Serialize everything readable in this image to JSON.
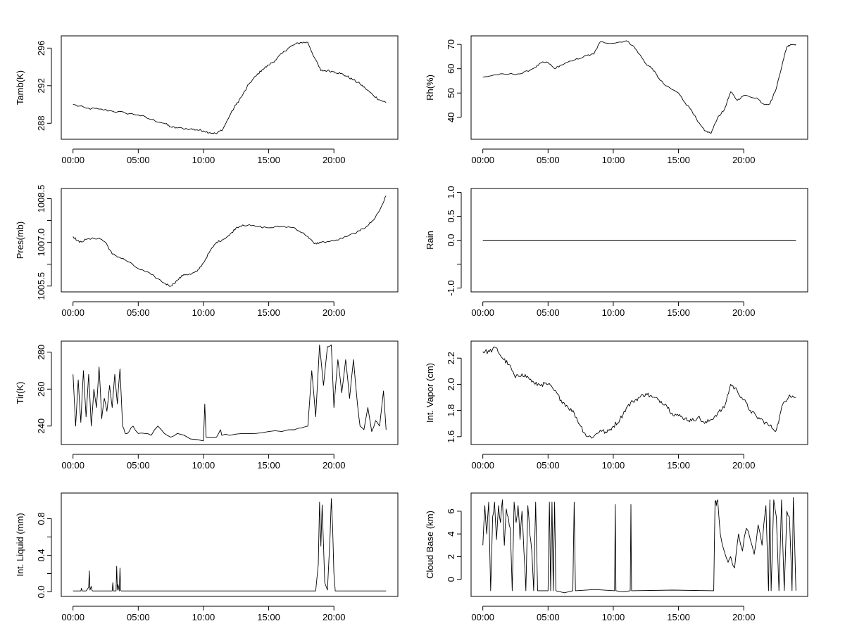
{
  "chart_data": [
    {
      "type": "line",
      "ylabel": "Tamb(K)",
      "x_ticks": [
        "00:00",
        "05:00",
        "10:00",
        "15:00",
        "20:00"
      ],
      "x_tick_hours": [
        0,
        5,
        10,
        15,
        20
      ],
      "xlim_hours": [
        -0.9,
        24.9
      ],
      "ylim": [
        286.3,
        297.3
      ],
      "y_ticks": [
        288,
        292,
        296
      ],
      "y_tick_labels": [
        "288",
        "292",
        "296"
      ],
      "noise": 0.12,
      "spiky": false,
      "x": [
        0,
        1,
        2,
        3,
        4,
        5,
        6,
        7,
        7.5,
        8,
        9,
        9.5,
        10,
        10.5,
        11,
        11.5,
        12,
        12.5,
        13,
        13.5,
        14,
        14.5,
        15,
        15.5,
        16,
        16.5,
        17,
        17.5,
        18,
        18.5,
        19,
        19.5,
        20,
        20.5,
        21,
        21.5,
        22,
        22.5,
        23,
        23.5,
        24
      ],
      "y": [
        290.0,
        289.6,
        289.5,
        289.3,
        289.1,
        288.9,
        288.4,
        288.0,
        287.6,
        287.5,
        287.4,
        287.3,
        287.2,
        287.0,
        286.9,
        287.4,
        288.8,
        290.0,
        291.0,
        292.2,
        293.0,
        293.7,
        294.2,
        294.7,
        295.4,
        296.0,
        296.4,
        296.6,
        296.6,
        295.0,
        293.6,
        293.6,
        293.5,
        293.3,
        293.0,
        292.6,
        292.2,
        291.6,
        291.0,
        290.5,
        290.2
      ]
    },
    {
      "type": "line",
      "ylabel": "Rh(%)",
      "x_ticks": [
        "00:00",
        "05:00",
        "10:00",
        "15:00",
        "20:00"
      ],
      "x_tick_hours": [
        0,
        5,
        10,
        15,
        20
      ],
      "xlim_hours": [
        -0.9,
        24.9
      ],
      "ylim": [
        31,
        73.5
      ],
      "y_ticks": [
        40,
        50,
        60,
        70
      ],
      "y_tick_labels": [
        "40",
        "50",
        "60",
        "70"
      ],
      "noise": 0.35,
      "spiky": false,
      "x": [
        0,
        1,
        2,
        3,
        4,
        4.5,
        5,
        5.5,
        6,
        7,
        8,
        8.5,
        9,
        10,
        11,
        11.5,
        12,
        12.5,
        13,
        13.5,
        14,
        15,
        15.5,
        16,
        16.5,
        17,
        17.5,
        18,
        18.5,
        19,
        19.5,
        20,
        21,
        21.5,
        22,
        22.5,
        23,
        23.3,
        23.6,
        24
      ],
      "y": [
        56.5,
        57.5,
        57.8,
        58.0,
        60.5,
        62.5,
        62.5,
        60.0,
        61.5,
        63.5,
        65.5,
        66.0,
        71.0,
        70.5,
        71.5,
        69.5,
        66.0,
        62.0,
        60.0,
        56.0,
        53.0,
        50.0,
        46.0,
        43.0,
        38.0,
        34.5,
        33.5,
        40.0,
        43.0,
        50.5,
        47.0,
        49.0,
        48.0,
        45.5,
        45.5,
        52.0,
        63.0,
        69.0,
        70.0,
        70.0
      ]
    },
    {
      "type": "line",
      "ylabel": "Pres(mb)",
      "x_ticks": [
        "00:00",
        "05:00",
        "10:00",
        "15:00",
        "20:00"
      ],
      "x_tick_hours": [
        0,
        5,
        10,
        15,
        20
      ],
      "xlim_hours": [
        -0.9,
        24.9
      ],
      "ylim": [
        1005.3,
        1008.85
      ],
      "y_ticks": [
        1005.5,
        1006.25,
        1007.0,
        1007.75,
        1008.5
      ],
      "y_tick_labels": [
        "1005.5",
        "",
        "1007.0",
        "",
        "1008.5"
      ],
      "noise": 0.035,
      "spiky": false,
      "x": [
        0,
        0.5,
        1,
        2,
        2.5,
        3,
        3.5,
        4,
        5,
        6,
        7,
        7.5,
        8,
        8.5,
        9,
        9.5,
        10,
        10.5,
        11,
        11.5,
        12,
        12.5,
        13,
        14,
        15,
        16,
        17,
        18,
        18.5,
        19,
        20,
        21,
        22,
        22.5,
        23,
        23.5,
        24
      ],
      "y": [
        1007.2,
        1007.0,
        1007.1,
        1007.15,
        1007.0,
        1006.6,
        1006.5,
        1006.4,
        1006.1,
        1005.9,
        1005.6,
        1005.5,
        1005.7,
        1005.9,
        1005.9,
        1006.0,
        1006.3,
        1006.7,
        1007.0,
        1007.1,
        1007.25,
        1007.5,
        1007.6,
        1007.55,
        1007.5,
        1007.55,
        1007.5,
        1007.2,
        1006.95,
        1007.0,
        1007.05,
        1007.2,
        1007.4,
        1007.55,
        1007.75,
        1008.1,
        1008.6
      ]
    },
    {
      "type": "line",
      "ylabel": "Rain",
      "x_ticks": [
        "00:00",
        "05:00",
        "10:00",
        "15:00",
        "20:00"
      ],
      "x_tick_hours": [
        0,
        5,
        10,
        15,
        20
      ],
      "xlim_hours": [
        -0.9,
        24.9
      ],
      "ylim": [
        -1.08,
        1.08
      ],
      "y_ticks": [
        -1.0,
        -0.5,
        0.0,
        0.5,
        1.0
      ],
      "y_tick_labels": [
        "-1.0",
        "",
        "0.0",
        "0.5",
        "1.0"
      ],
      "noise": 0,
      "spiky": false,
      "x": [
        0,
        24
      ],
      "y": [
        0,
        0
      ]
    },
    {
      "type": "line",
      "ylabel": "Tir(K)",
      "x_ticks": [
        "00:00",
        "05:00",
        "10:00",
        "15:00",
        "20:00"
      ],
      "x_tick_hours": [
        0,
        5,
        10,
        15,
        20
      ],
      "xlim_hours": [
        -0.9,
        24.9
      ],
      "ylim": [
        230,
        286
      ],
      "y_ticks": [
        240,
        260,
        280
      ],
      "y_tick_labels": [
        "240",
        "260",
        "280"
      ],
      "noise": 0.6,
      "spiky": true,
      "x": [
        0,
        0.2,
        0.4,
        0.6,
        0.8,
        1.0,
        1.2,
        1.4,
        1.6,
        1.8,
        2.0,
        2.2,
        2.4,
        2.6,
        2.8,
        3.0,
        3.2,
        3.4,
        3.6,
        3.8,
        4.0,
        4.3,
        4.6,
        5.0,
        5.5,
        6.0,
        6.5,
        7.0,
        7.5,
        8.0,
        9.0,
        10.0,
        10.1,
        10.2,
        11.0,
        11.3,
        11.4,
        12.0,
        13.0,
        14.0,
        15.0,
        16.0,
        17.0,
        17.5,
        18.0,
        18.3,
        18.6,
        18.9,
        19.2,
        19.5,
        19.8,
        20.0,
        20.3,
        20.6,
        20.9,
        21.2,
        21.5,
        21.8,
        22.0,
        22.3,
        22.6,
        22.9,
        23.2,
        23.5,
        23.8,
        24.0
      ],
      "y": [
        268,
        240,
        265,
        242,
        270,
        245,
        268,
        240,
        260,
        250,
        272,
        244,
        255,
        248,
        262,
        250,
        268,
        252,
        271,
        240,
        236,
        237,
        240,
        236,
        236,
        235,
        240,
        236,
        234,
        236,
        233,
        232,
        252,
        234,
        234,
        238,
        235,
        235,
        236,
        236,
        237,
        237,
        238,
        239,
        240,
        270,
        245,
        284,
        262,
        283,
        284,
        250,
        276,
        258,
        276,
        255,
        276,
        252,
        240,
        238,
        250,
        237,
        243,
        240,
        259,
        238
      ]
    },
    {
      "type": "line",
      "ylabel": "Int. Vapor (cm)",
      "x_ticks": [
        "00:00",
        "05:00",
        "10:00",
        "15:00",
        "20:00"
      ],
      "x_tick_hours": [
        0,
        5,
        10,
        15,
        20
      ],
      "xlim_hours": [
        -0.9,
        24.9
      ],
      "ylim": [
        1.54,
        2.33
      ],
      "y_ticks": [
        1.6,
        1.8,
        2.0,
        2.2
      ],
      "y_tick_labels": [
        "1.6",
        "1.8",
        "2.0",
        "2.2"
      ],
      "noise": 0.018,
      "spiky": false,
      "x": [
        0,
        0.5,
        1,
        1.5,
        2,
        2.5,
        3,
        3.5,
        4,
        4.5,
        5,
        5.5,
        6,
        6.5,
        7,
        7.5,
        8,
        8.5,
        9,
        9.5,
        10,
        10.5,
        11,
        11.5,
        12,
        12.5,
        13,
        13.5,
        14,
        14.5,
        15,
        15.5,
        16,
        16.5,
        17,
        17.5,
        18,
        18.5,
        19,
        19.5,
        20,
        20.5,
        21,
        21.5,
        22,
        22.5,
        23,
        23.5,
        24
      ],
      "y": [
        2.25,
        2.25,
        2.28,
        2.2,
        2.15,
        2.05,
        2.08,
        2.05,
        2.0,
        2.0,
        2.0,
        1.95,
        1.88,
        1.83,
        1.78,
        1.68,
        1.6,
        1.6,
        1.65,
        1.63,
        1.68,
        1.73,
        1.82,
        1.87,
        1.9,
        1.93,
        1.9,
        1.88,
        1.85,
        1.78,
        1.76,
        1.74,
        1.72,
        1.75,
        1.7,
        1.73,
        1.78,
        1.82,
        2.0,
        1.95,
        1.88,
        1.8,
        1.75,
        1.72,
        1.68,
        1.65,
        1.85,
        1.92,
        1.9
      ]
    },
    {
      "type": "line",
      "ylabel": "Int. Liquid (mm)",
      "x_ticks": [
        "00:00",
        "05:00",
        "10:00",
        "15:00",
        "20:00"
      ],
      "x_tick_hours": [
        0,
        5,
        10,
        15,
        20
      ],
      "xlim_hours": [
        -0.9,
        24.9
      ],
      "ylim": [
        -0.05,
        1.08
      ],
      "y_ticks": [
        0.0,
        0.2,
        0.4,
        0.6,
        0.8
      ],
      "y_tick_labels": [
        "0.0",
        "",
        "0.4",
        "",
        "0.8"
      ],
      "noise": 0,
      "spiky": false,
      "x": [
        0,
        0.6,
        0.65,
        0.7,
        1.0,
        1.2,
        1.25,
        1.3,
        1.4,
        1.45,
        1.5,
        1.6,
        3.0,
        3.05,
        3.1,
        3.3,
        3.35,
        3.4,
        3.45,
        3.55,
        3.6,
        3.65,
        3.7,
        18.6,
        18.8,
        18.9,
        19.0,
        19.1,
        19.3,
        19.5,
        19.7,
        19.8,
        19.9,
        20.0,
        20.1,
        24
      ],
      "y": [
        0.01,
        0.01,
        0.04,
        0.01,
        0.01,
        0.05,
        0.23,
        0.02,
        0.06,
        0.02,
        0.01,
        0.01,
        0.01,
        0.1,
        0.01,
        0.01,
        0.28,
        0.02,
        0.08,
        0.01,
        0.26,
        0.02,
        0.01,
        0.01,
        0.3,
        0.98,
        0.5,
        0.95,
        0.1,
        0.02,
        0.6,
        1.02,
        0.7,
        0.2,
        0.01,
        0.01
      ]
    },
    {
      "type": "line",
      "ylabel": "Cloud Base (km)",
      "x_ticks": [
        "00:00",
        "05:00",
        "10:00",
        "15:00",
        "20:00"
      ],
      "x_tick_hours": [
        0,
        5,
        10,
        15,
        20
      ],
      "xlim_hours": [
        -0.9,
        24.9
      ],
      "ylim": [
        -1.5,
        7.6
      ],
      "y_ticks": [
        0,
        2,
        4,
        6
      ],
      "y_tick_labels": [
        "0",
        "2",
        "4",
        "6"
      ],
      "noise": 0.25,
      "spiky": true,
      "x": [
        0,
        0.15,
        0.3,
        0.45,
        0.6,
        0.75,
        0.9,
        1.05,
        1.2,
        1.35,
        1.5,
        1.65,
        1.8,
        1.95,
        2.1,
        2.25,
        2.4,
        2.55,
        2.7,
        2.85,
        3.0,
        3.15,
        3.3,
        3.45,
        3.6,
        3.75,
        3.9,
        4.05,
        4.2,
        5.0,
        5.1,
        5.2,
        5.3,
        5.4,
        5.5,
        5.6,
        6.9,
        7.0,
        7.1,
        10.1,
        10.15,
        10.2,
        11.3,
        11.35,
        11.4,
        17.7,
        17.8,
        17.9,
        18.0,
        18.2,
        18.5,
        18.8,
        19.0,
        19.3,
        19.6,
        19.9,
        20.2,
        20.5,
        20.8,
        21.1,
        21.4,
        21.7,
        21.9,
        22.0,
        22.1,
        22.3,
        22.5,
        22.7,
        22.9,
        23.1,
        23.3,
        23.5,
        23.7,
        23.8,
        24.0
      ],
      "y": [
        3.0,
        6.5,
        4.0,
        6.8,
        -1.0,
        5.5,
        6.8,
        3.5,
        6.5,
        5.0,
        7.0,
        3.0,
        6.2,
        5.5,
        4.5,
        -1.0,
        6.8,
        5.0,
        6.5,
        3.5,
        6.0,
        2.5,
        -1.0,
        6.5,
        4.0,
        2.5,
        -1.0,
        6.8,
        -1.0,
        -1.0,
        6.8,
        -1.0,
        6.8,
        -1.0,
        6.8,
        -1.0,
        -1.0,
        6.8,
        -1.0,
        -1.0,
        6.6,
        -1.0,
        -1.0,
        6.6,
        -1.0,
        -1.0,
        6.9,
        6.5,
        7.0,
        4.0,
        2.5,
        1.5,
        2.0,
        1.0,
        4.0,
        2.5,
        4.5,
        3.5,
        2.2,
        4.8,
        3.0,
        6.5,
        -1.0,
        7.0,
        -1.0,
        7.0,
        5.5,
        -1.0,
        7.0,
        -1.0,
        6.0,
        5.5,
        -1.0,
        7.2,
        -1.0
      ]
    }
  ]
}
